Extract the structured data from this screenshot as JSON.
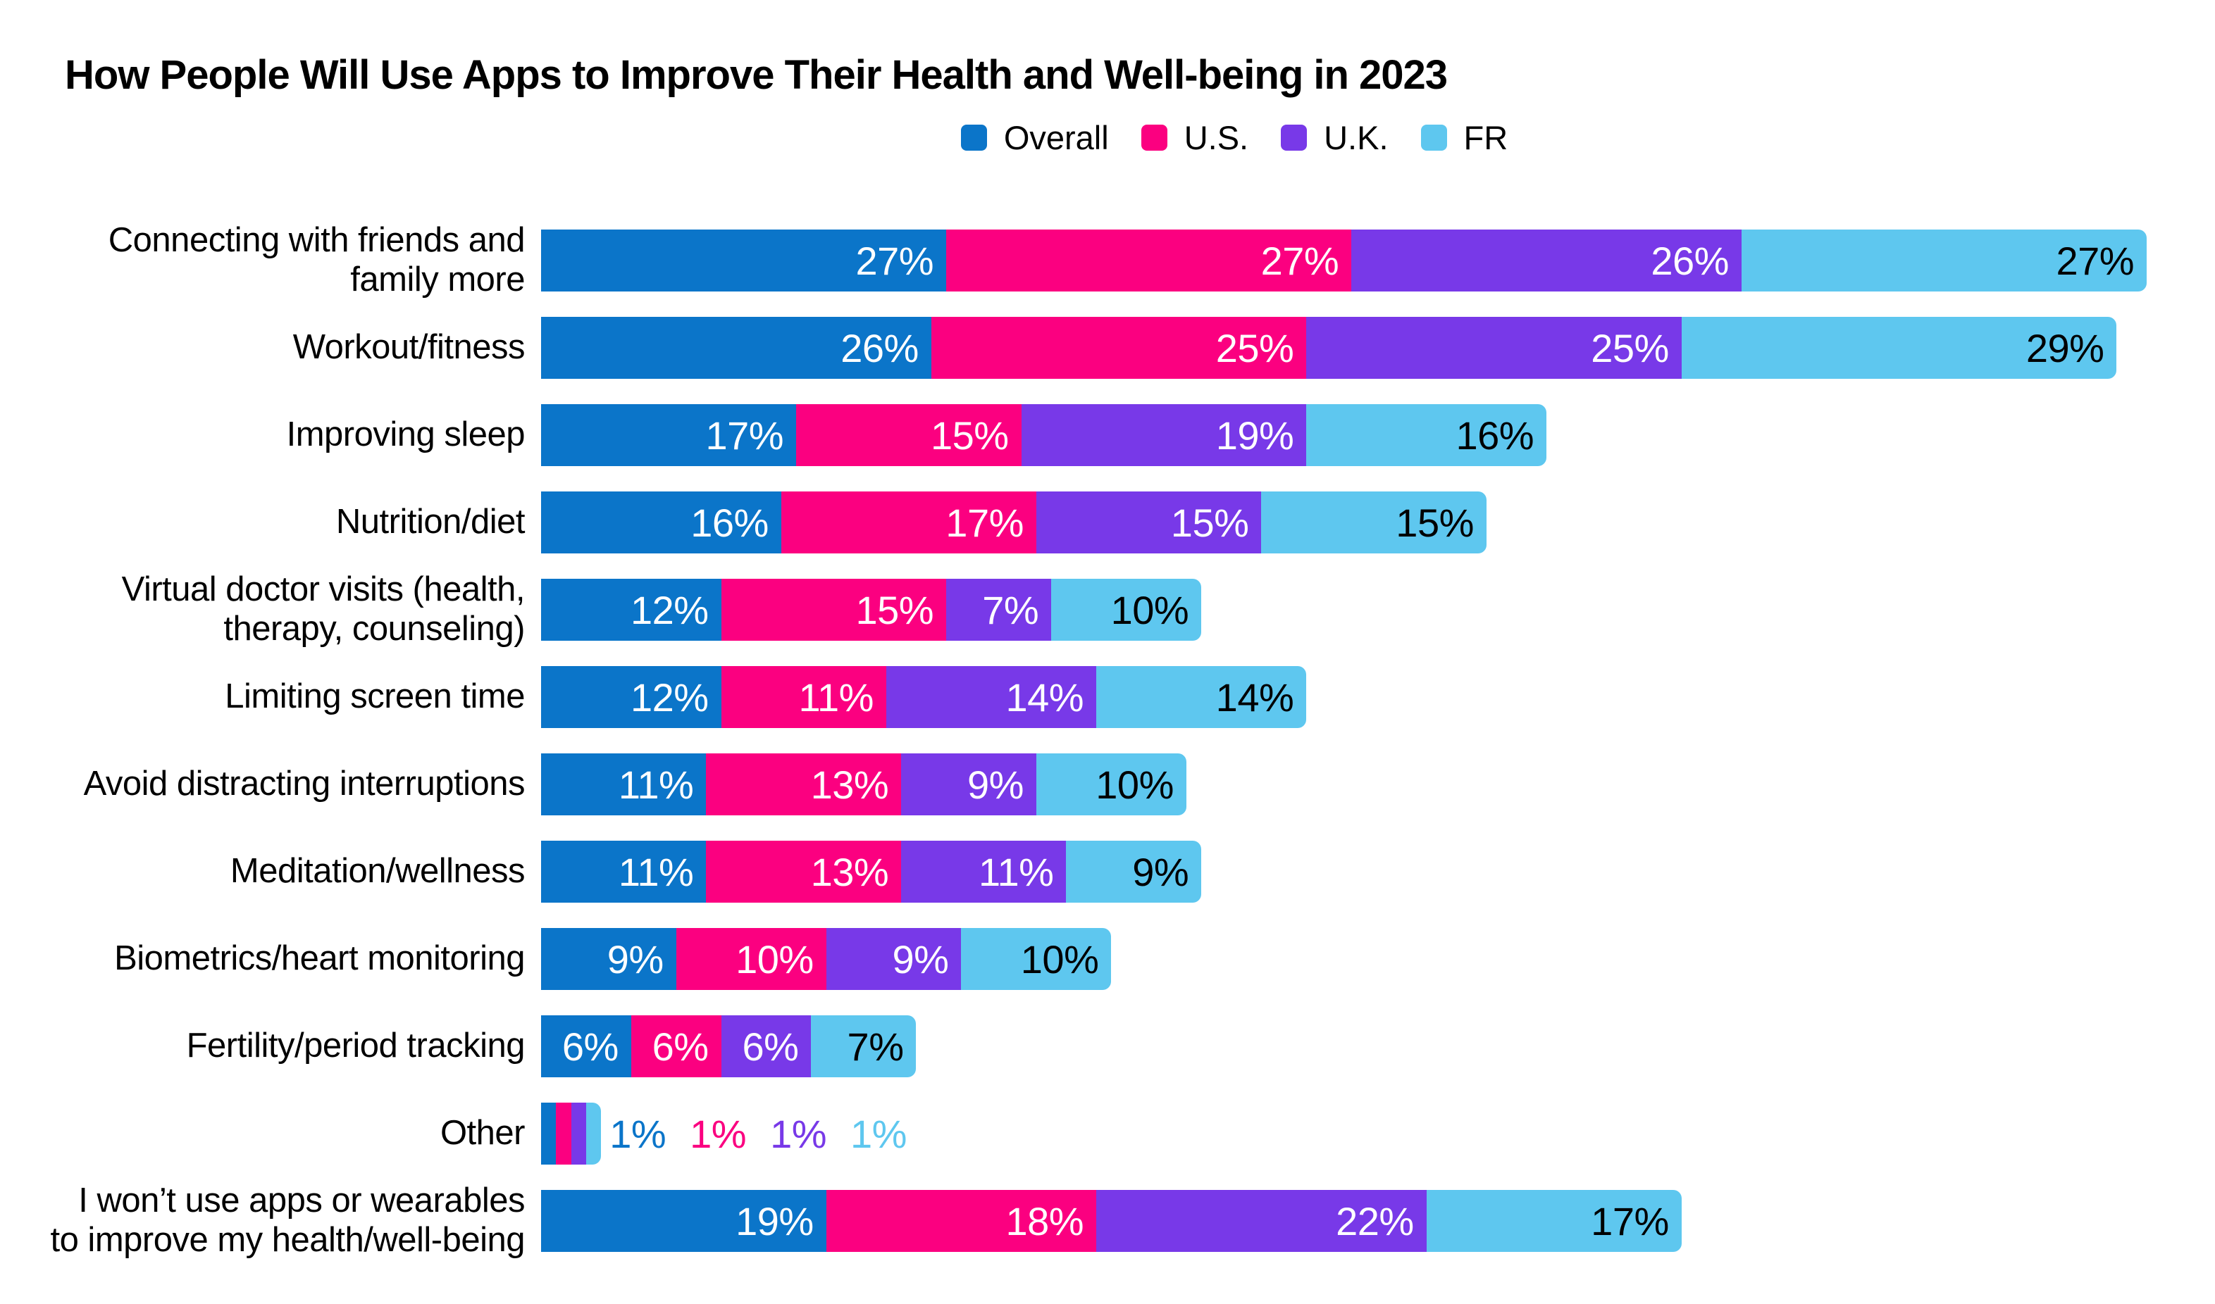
{
  "chart_data": {
    "type": "bar",
    "stacked": true,
    "orientation": "horizontal",
    "title": "How People Will Use Apps to Improve Their Health and Well-being in 2023",
    "legend_position": "top",
    "grid": false,
    "unit": "%",
    "value_label_position": "inside-end",
    "axis_hidden": true,
    "categories": [
      "Connecting with friends and\nfamily more",
      "Workout/fitness",
      "Improving sleep",
      "Nutrition/diet",
      "Virtual doctor visits (health,\ntherapy, counseling)",
      "Limiting screen time",
      "Avoid distracting interruptions",
      "Meditation/wellness",
      "Biometrics/heart monitoring",
      "Fertility/period tracking",
      "Other",
      "I won’t use apps or wearables\nto improve my health/well-being"
    ],
    "series": [
      {
        "name": "Overall",
        "color": "#0b75c9",
        "label_color": "#ffffff",
        "values": [
          27,
          26,
          17,
          16,
          12,
          12,
          11,
          11,
          9,
          6,
          1,
          19
        ]
      },
      {
        "name": "U.S.",
        "color": "#fb0080",
        "label_color": "#ffffff",
        "values": [
          27,
          25,
          15,
          17,
          15,
          11,
          13,
          13,
          10,
          6,
          1,
          18
        ]
      },
      {
        "name": "U.K.",
        "color": "#7839e8",
        "label_color": "#ffffff",
        "values": [
          26,
          25,
          19,
          15,
          7,
          14,
          9,
          11,
          9,
          6,
          1,
          22
        ]
      },
      {
        "name": "FR",
        "color": "#5ec7ef",
        "label_color": "#000000",
        "values": [
          27,
          29,
          16,
          15,
          10,
          14,
          10,
          9,
          10,
          7,
          1,
          17
        ]
      }
    ]
  }
}
